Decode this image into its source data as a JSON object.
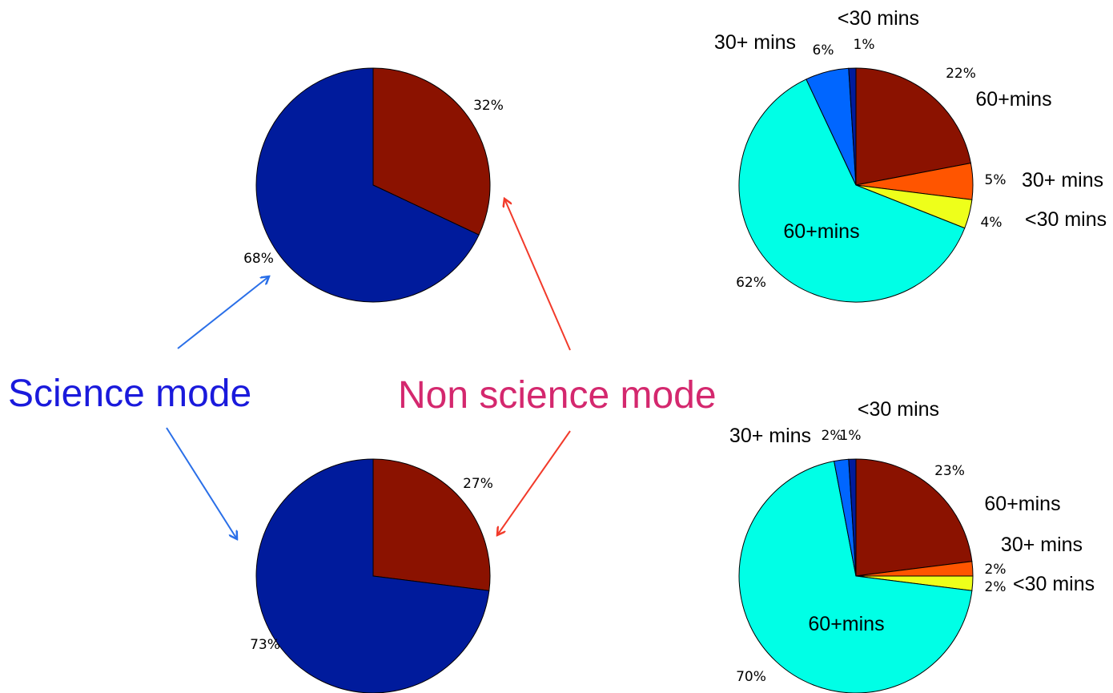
{
  "annotations": {
    "science_label": "Science mode",
    "science_color": "#1a1adc",
    "science_arrow_color": "#2a6fe8",
    "nonscience_label": "Non science mode",
    "nonscience_color": "#d4286e",
    "nonscience_arrow_color": "#f23a2a"
  },
  "chart_data": [
    {
      "type": "pie",
      "slices": [
        {
          "value": 32,
          "label": "32%",
          "color": "#8b1200"
        },
        {
          "value": 68,
          "label": "68%",
          "color": "#001b9c"
        }
      ]
    },
    {
      "type": "pie",
      "slices": [
        {
          "value": 22,
          "label": "22%",
          "color": "#8b1200",
          "category": "60+mins"
        },
        {
          "value": 5,
          "label": "5%",
          "color": "#ff5500",
          "category": "30+ mins"
        },
        {
          "value": 4,
          "label": "4%",
          "color": "#eeff1a",
          "category": "<30 mins"
        },
        {
          "value": 62,
          "label": "62%",
          "color": "#00ffe6",
          "category": "60+mins"
        },
        {
          "value": 6,
          "label": "6%",
          "color": "#0066ff",
          "category": "30+ mins"
        },
        {
          "value": 1,
          "label": "1%",
          "color": "#001b9c",
          "category": "<30 mins"
        }
      ]
    },
    {
      "type": "pie",
      "slices": [
        {
          "value": 27,
          "label": "27%",
          "color": "#8b1200"
        },
        {
          "value": 73,
          "label": "73%",
          "color": "#001b9c"
        }
      ]
    },
    {
      "type": "pie",
      "slices": [
        {
          "value": 23,
          "label": "23%",
          "color": "#8b1200",
          "category": "60+mins"
        },
        {
          "value": 2,
          "label": "2%",
          "color": "#ff5500",
          "category": "30+ mins"
        },
        {
          "value": 2,
          "label": "2%",
          "color": "#eeff1a",
          "category": "<30 mins"
        },
        {
          "value": 70,
          "label": "70%",
          "color": "#00ffe6",
          "category": "60+mins"
        },
        {
          "value": 2,
          "label": "2%",
          "color": "#0066ff",
          "category": "30+ mins"
        },
        {
          "value": 1,
          "label": "1%",
          "color": "#001b9c",
          "category": "<30 mins"
        }
      ]
    }
  ]
}
